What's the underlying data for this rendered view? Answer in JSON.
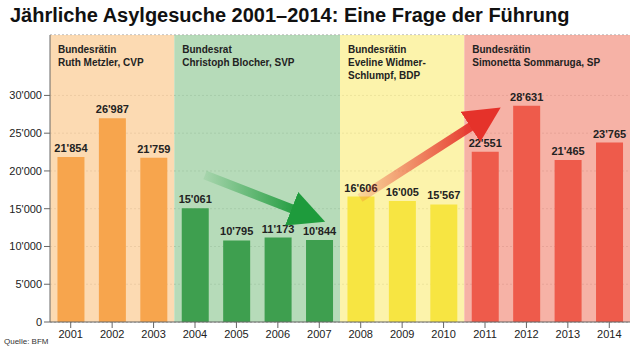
{
  "chart_data": {
    "type": "bar",
    "title": "Jährliche Asylgesuche 2001–2014: Eine Frage der Führung",
    "source": "Quelle: BFM",
    "categories": [
      "2001",
      "2002",
      "2003",
      "2004",
      "2005",
      "2006",
      "2007",
      "2008",
      "2009",
      "2010",
      "2011",
      "2012",
      "2013",
      "2014"
    ],
    "values": [
      21854,
      26987,
      21759,
      15061,
      10795,
      11173,
      10844,
      16606,
      16005,
      15567,
      22551,
      28631,
      21465,
      23765
    ],
    "value_labels": [
      "21'854",
      "26'987",
      "21'759",
      "15'061",
      "10'795",
      "11'173",
      "10'844",
      "16'606",
      "16'005",
      "15'567",
      "22'551",
      "28'631",
      "21'465",
      "23'765"
    ],
    "colors": [
      "#f7a54d",
      "#f7a54d",
      "#f7a54d",
      "#3e9f4f",
      "#3e9f4f",
      "#3e9f4f",
      "#3e9f4f",
      "#f7e542",
      "#f7e542",
      "#f7e542",
      "#ee5b4b",
      "#ee5b4b",
      "#ee5b4b",
      "#ee5b4b"
    ],
    "data_labels": true,
    "ylim": [
      0,
      38000
    ],
    "yticks": [
      0,
      {
        "value": 5000,
        "label": "5'000"
      },
      {
        "value": 10000,
        "label": "10'000"
      },
      {
        "value": 15000,
        "label": "15'000"
      },
      {
        "value": 20000,
        "label": "20'000"
      },
      {
        "value": 25000,
        "label": "25'000"
      },
      {
        "value": 30000,
        "label": "30'000"
      }
    ],
    "grid": true,
    "annotations": [
      {
        "lines": [
          "Bundesrätin",
          "Ruth Metzler, CVP"
        ],
        "from": "2001",
        "to": "2003",
        "color": "#fbd3a4"
      },
      {
        "lines": [
          "Bundesrat",
          "Christoph Blocher, SVP"
        ],
        "from": "2004",
        "to": "2007",
        "color": "#a9d5ad"
      },
      {
        "lines": [
          "Bundesrätin",
          "Eveline Widmer-",
          "Schlumpf, BDP"
        ],
        "from": "2008",
        "to": "2010",
        "color": "#fbf19c"
      },
      {
        "lines": [
          "Bundesrätin",
          "Simonetta Sommaruga, SP"
        ],
        "from": "2011",
        "to": "2014",
        "color": "#f4a596"
      }
    ]
  }
}
